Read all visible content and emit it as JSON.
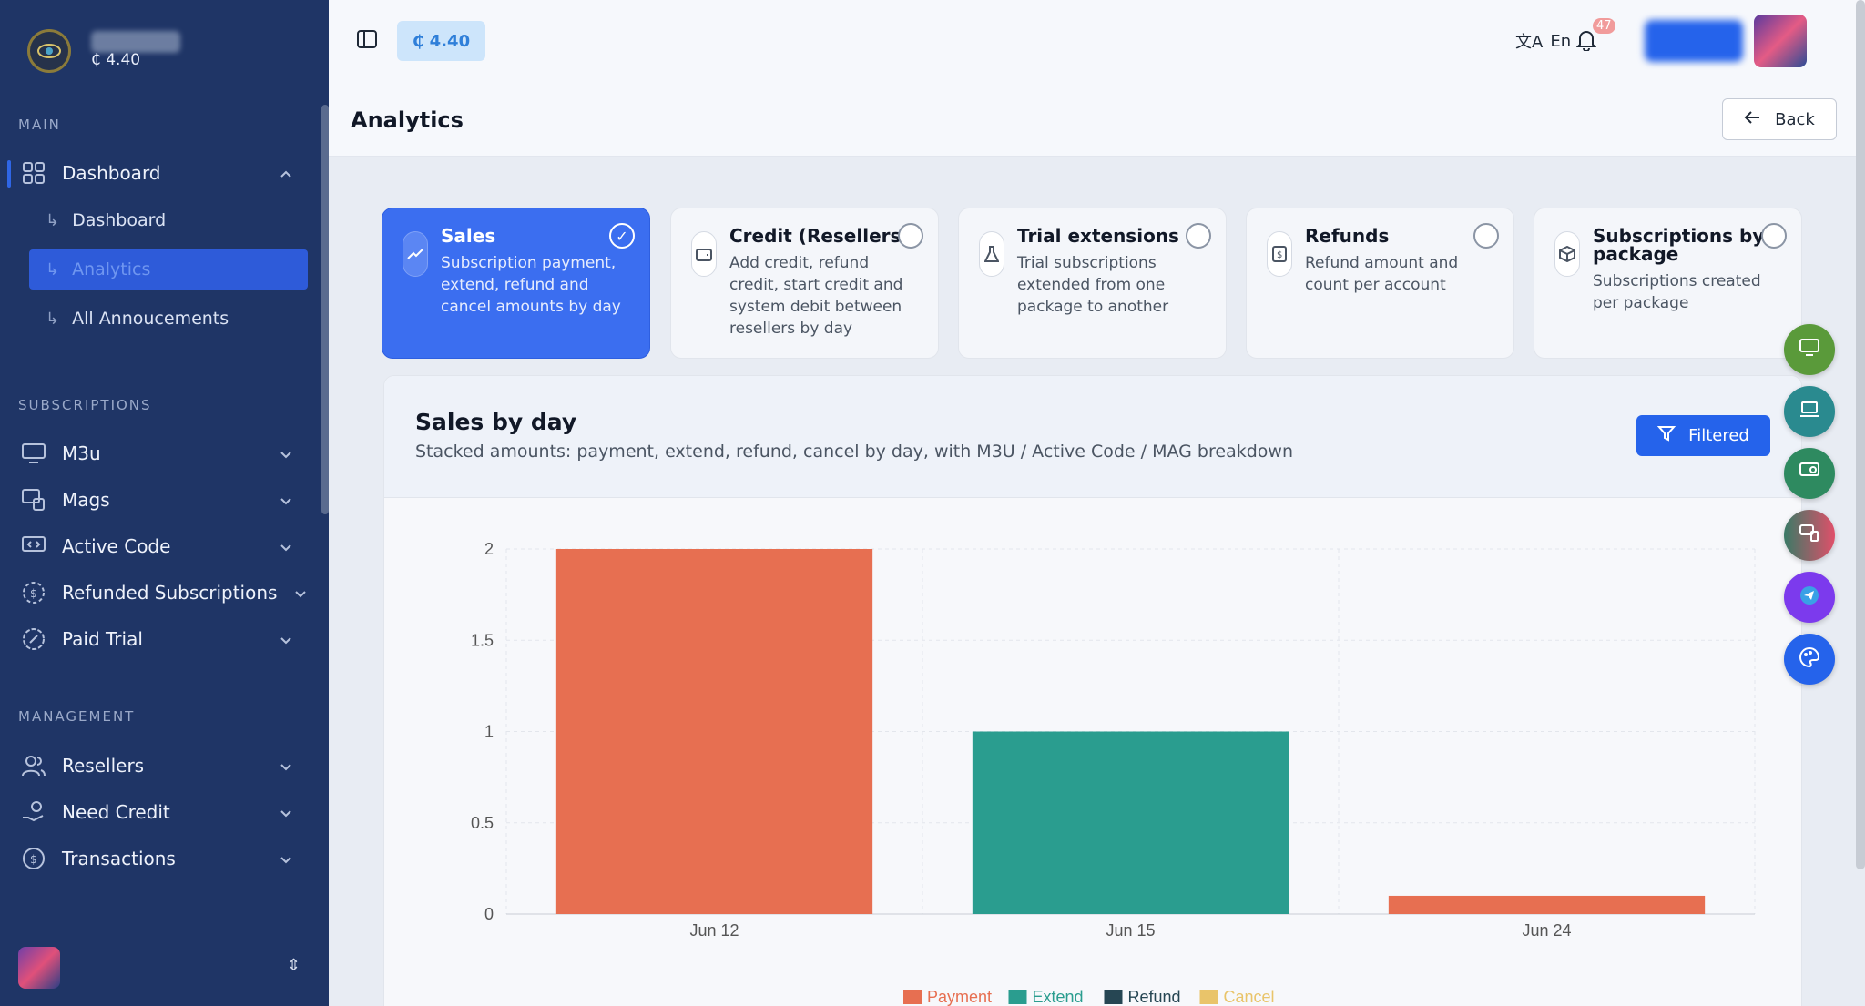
{
  "brand": {
    "credit": "₵ 4.40"
  },
  "sidebar": {
    "sections": {
      "main": "MAIN",
      "subscriptions": "SUBSCRIPTIONS",
      "management": "MANAGEMENT"
    },
    "dashboard": {
      "label": "Dashboard",
      "sub": [
        "Dashboard",
        "Analytics",
        "All Annoucements"
      ]
    },
    "subscriptions": [
      "M3u",
      "Mags",
      "Active Code",
      "Refunded Subscriptions",
      "Paid Trial"
    ],
    "management": [
      "Resellers",
      "Need Credit",
      "Transactions"
    ]
  },
  "topbar": {
    "credit": "₵ 4.40",
    "language": "En",
    "notifications": "47"
  },
  "page": {
    "title": "Analytics",
    "back": "Back"
  },
  "cards": [
    {
      "title": "Sales",
      "desc": "Subscription payment, extend, refund and cancel amounts by day",
      "selected": true
    },
    {
      "title": "Credit (Resellers)",
      "desc": "Add credit, refund credit, start credit and system debit between resellers by day",
      "selected": false
    },
    {
      "title": "Trial extensions",
      "desc": "Trial subscriptions extended from one package to another",
      "selected": false
    },
    {
      "title": "Refunds",
      "desc": "Refund amount and count per account",
      "selected": false
    },
    {
      "title": "Subscriptions by package",
      "desc": "Subscriptions created per package",
      "selected": false
    }
  ],
  "panel": {
    "title": "Sales by day",
    "subtitle": "Stacked amounts: payment, extend, refund, cancel by day, with M3U / Active Code / MAG breakdown",
    "filter": "Filtered"
  },
  "chart_data": {
    "type": "bar",
    "stacked": true,
    "categories": [
      "Jun 12",
      "Jun 15",
      "Jun 24"
    ],
    "series": [
      {
        "name": "Payment",
        "values": [
          2,
          0,
          0.1
        ],
        "color": "#e76f51"
      },
      {
        "name": "Extend",
        "values": [
          0,
          1,
          0
        ],
        "color": "#2a9d8f"
      },
      {
        "name": "Refund",
        "values": [
          0,
          0,
          0
        ],
        "color": "#264653"
      },
      {
        "name": "Cancel",
        "values": [
          0,
          0,
          0
        ],
        "color": "#e9c46a"
      }
    ],
    "ylim": [
      0,
      2
    ],
    "yticks": [
      "0",
      "0.5",
      "1",
      "1.5",
      "2"
    ],
    "legend": "bottom",
    "grid": true
  }
}
